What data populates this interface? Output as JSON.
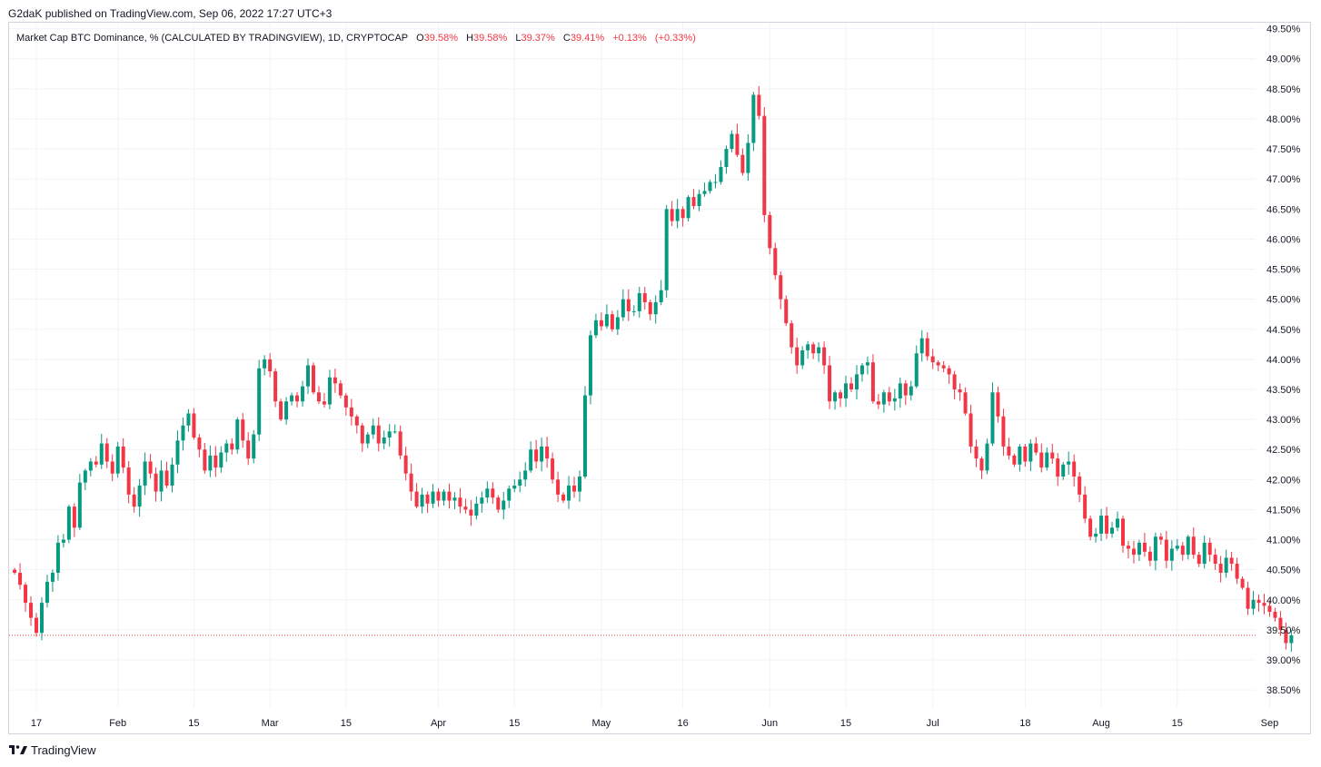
{
  "publish_line": "G2daK published on TradingView.com, Sep 06, 2022 17:27 UTC+3",
  "legend": {
    "title": "Market Cap BTC Dominance, % (CALCULATED BY TRADINGVIEW), 1D, CRYPTOCAP",
    "open_label": "O",
    "open": "39.58%",
    "high_label": "H",
    "high": "39.58%",
    "low_label": "L",
    "low": "39.37%",
    "close_label": "C",
    "close": "39.41%",
    "change": "+0.13%",
    "change_pct": "(+0.33%)",
    "value_color": "#f23645"
  },
  "brand": "TradingView",
  "colors": {
    "up": "#089981",
    "down": "#f23645",
    "grid": "#f0f3fa",
    "axis_text": "#131722",
    "last_price_line": "#f23645"
  },
  "chart_data": {
    "type": "candlestick",
    "title": "Market Cap BTC Dominance, % (CALCULATED BY TRADINGVIEW), 1D, CRYPTOCAP",
    "ylim": [
      38.2,
      49.6
    ],
    "y_ticks": [
      "49.50%",
      "49.00%",
      "48.50%",
      "48.00%",
      "47.50%",
      "47.00%",
      "46.50%",
      "46.00%",
      "45.50%",
      "45.00%",
      "44.50%",
      "44.00%",
      "43.50%",
      "43.00%",
      "42.50%",
      "42.00%",
      "41.50%",
      "41.00%",
      "40.50%",
      "40.00%",
      "39.50%",
      "39.00%",
      "38.50%"
    ],
    "x_ticks": [
      {
        "label": "17",
        "day": 16
      },
      {
        "label": "Feb",
        "day": 31
      },
      {
        "label": "15",
        "day": 45
      },
      {
        "label": "Mar",
        "day": 59
      },
      {
        "label": "15",
        "day": 73
      },
      {
        "label": "Apr",
        "day": 90
      },
      {
        "label": "15",
        "day": 104
      },
      {
        "label": "May",
        "day": 120
      },
      {
        "label": "16",
        "day": 135
      },
      {
        "label": "Jun",
        "day": 151
      },
      {
        "label": "15",
        "day": 165
      },
      {
        "label": "Jul",
        "day": 181
      },
      {
        "label": "18",
        "day": 198
      },
      {
        "label": "Aug",
        "day": 212
      },
      {
        "label": "15",
        "day": 226
      },
      {
        "label": "Sep",
        "day": 243
      }
    ],
    "x_start_day": 12,
    "last_price": 39.41,
    "closes": [
      40.45,
      40.25,
      39.95,
      39.7,
      39.45,
      39.95,
      40.3,
      40.45,
      40.95,
      41.0,
      41.55,
      41.2,
      41.95,
      42.15,
      42.3,
      42.25,
      42.6,
      42.3,
      42.1,
      42.55,
      42.2,
      41.75,
      41.55,
      41.9,
      42.3,
      42.1,
      41.8,
      42.15,
      41.9,
      42.25,
      42.65,
      42.9,
      43.1,
      42.7,
      42.5,
      42.15,
      42.4,
      42.2,
      42.45,
      42.6,
      42.5,
      43.0,
      42.65,
      42.35,
      42.75,
      43.85,
      44.0,
      43.8,
      43.3,
      43.0,
      43.3,
      43.4,
      43.3,
      43.55,
      43.9,
      43.45,
      43.3,
      43.25,
      43.7,
      43.6,
      43.4,
      43.2,
      43.05,
      42.9,
      42.6,
      42.75,
      42.9,
      42.6,
      42.7,
      42.8,
      42.8,
      42.4,
      42.1,
      41.8,
      41.55,
      41.75,
      41.6,
      41.8,
      41.65,
      41.8,
      41.65,
      41.7,
      41.55,
      41.5,
      41.4,
      41.6,
      41.7,
      41.85,
      41.7,
      41.5,
      41.65,
      41.85,
      41.9,
      42.0,
      42.15,
      42.5,
      42.3,
      42.55,
      42.35,
      42.0,
      41.75,
      41.65,
      41.9,
      41.8,
      42.05,
      43.4,
      44.4,
      44.65,
      44.55,
      44.75,
      44.5,
      44.7,
      45.0,
      44.8,
      44.8,
      45.1,
      44.95,
      44.75,
      44.95,
      45.15,
      46.5,
      46.3,
      46.5,
      46.35,
      46.7,
      46.55,
      46.75,
      46.8,
      46.95,
      46.95,
      47.2,
      47.5,
      47.75,
      47.4,
      47.1,
      47.6,
      48.4,
      48.05,
      46.4,
      45.85,
      45.4,
      45.0,
      44.6,
      44.2,
      43.9,
      44.15,
      44.25,
      44.1,
      44.2,
      43.9,
      43.3,
      43.45,
      43.35,
      43.6,
      43.5,
      43.75,
      43.9,
      43.95,
      43.3,
      43.25,
      43.45,
      43.3,
      43.35,
      43.6,
      43.4,
      43.55,
      44.1,
      44.35,
      44.05,
      43.95,
      43.9,
      43.85,
      43.75,
      43.5,
      43.45,
      43.1,
      42.55,
      42.35,
      42.15,
      42.6,
      43.45,
      43.05,
      42.55,
      42.4,
      42.25,
      42.55,
      42.3,
      42.6,
      42.45,
      42.2,
      42.45,
      42.35,
      42.05,
      42.25,
      42.3,
      42.05,
      41.75,
      41.35,
      41.05,
      41.1,
      41.4,
      41.1,
      41.2,
      41.35,
      40.9,
      40.85,
      40.75,
      40.95,
      40.8,
      40.65,
      41.05,
      41.0,
      40.65,
      40.85,
      40.9,
      40.75,
      41.05,
      40.75,
      40.6,
      40.95,
      40.75,
      40.6,
      40.45,
      40.7,
      40.6,
      40.35,
      40.2,
      39.85,
      40.0,
      39.95,
      39.9,
      39.8,
      39.7,
      39.5,
      39.28,
      39.41
    ]
  }
}
